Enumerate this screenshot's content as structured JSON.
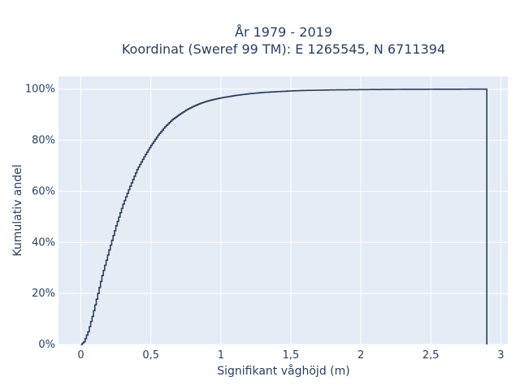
{
  "chart_data": {
    "type": "line",
    "line_shape": "step",
    "title_lines": [
      "År 1979 - 2019",
      "Koordinat (Sweref 99 TM): E 1265545, N 6711394"
    ],
    "xlabel": "Signifikant våghöjd (m)",
    "ylabel": "Kumulativ andel",
    "xlim": [
      -0.16,
      3.05
    ],
    "ylim": [
      0,
      1.05
    ],
    "x_ticks": [
      0,
      0.5,
      1,
      1.5,
      2,
      2.5,
      3
    ],
    "x_tick_labels": [
      "0",
      "0,5",
      "1",
      "1,5",
      "2",
      "2,5",
      "3"
    ],
    "y_ticks": [
      0,
      0.2,
      0.4,
      0.6,
      0.8,
      1.0
    ],
    "y_tick_labels": [
      "0%",
      "20%",
      "40%",
      "60%",
      "80%",
      "100%"
    ],
    "grid": true,
    "legend": "none",
    "colors": {
      "line": "#2f3e55",
      "plot_bg": "#e5ecf6",
      "grid": "#ffffff",
      "text": "#2a3f5f"
    },
    "series": [
      {
        "x": [
          0.0,
          0.02,
          0.05,
          0.08,
          0.1,
          0.12,
          0.15,
          0.2,
          0.25,
          0.3,
          0.35,
          0.4,
          0.45,
          0.5,
          0.55,
          0.6,
          0.65,
          0.7,
          0.75,
          0.8,
          0.85,
          0.9,
          0.95,
          1.0,
          1.1,
          1.2,
          1.3,
          1.4,
          1.5,
          1.6,
          1.8,
          2.0,
          2.2,
          2.5,
          2.8,
          2.9
        ],
        "y": [
          0.0,
          0.01,
          0.05,
          0.11,
          0.155,
          0.2,
          0.27,
          0.37,
          0.465,
          0.55,
          0.62,
          0.685,
          0.735,
          0.78,
          0.82,
          0.853,
          0.88,
          0.9,
          0.918,
          0.932,
          0.944,
          0.953,
          0.96,
          0.966,
          0.975,
          0.982,
          0.987,
          0.99,
          0.993,
          0.995,
          0.997,
          0.998,
          0.999,
          0.9995,
          1.0,
          1.0
        ]
      }
    ]
  }
}
